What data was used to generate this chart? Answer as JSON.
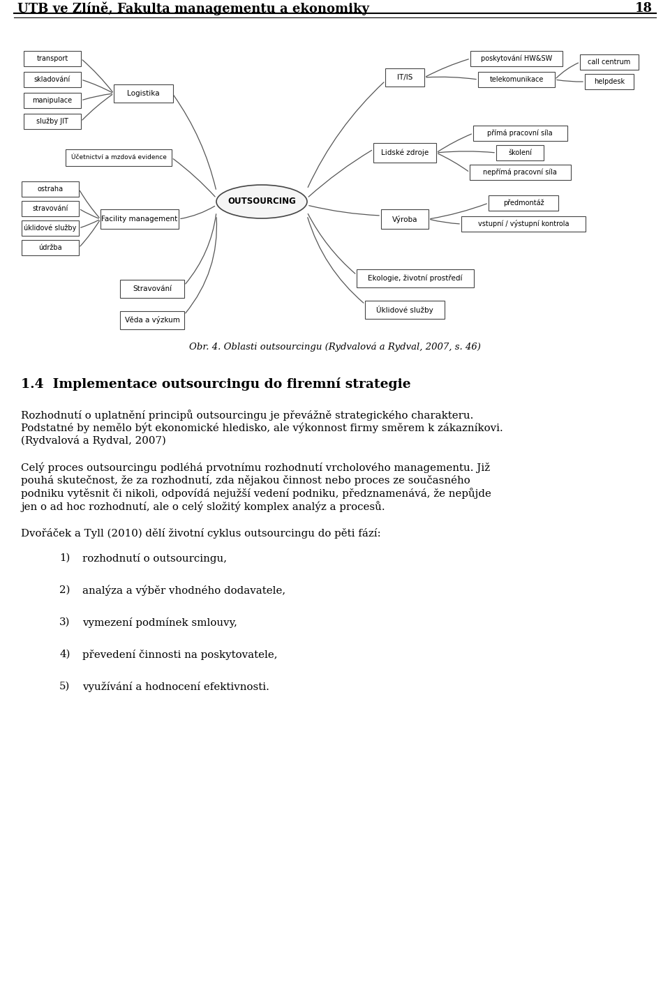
{
  "header_text": "UTB ve Zlíně, Fakulta managementu a ekonomiky",
  "header_number": "18",
  "fig_caption": "Obr. 4. Oblasti outsourcingu (Rydvalová a Rydval, 2007, s. 46)",
  "section_title": "1.4  Implementace outsourcingu do firemní strategie",
  "para1_line1": "Rozhodnutí o uplatnění principů outsourcingu je převážně strategického charakteru.",
  "para1_line2": "Podstatné by nemělo být ekonomické hledisko, ale výkonnost firmy směrem k zákazníkovi.",
  "para1_line3": "(Rydvalová a Rydval, 2007)",
  "para2_line1": "Celý proces outsourcingu podléhá prvotnímu rozhodnutí vrcholového managementu. Již",
  "para2_line2": "pouhá skutečnost, že za rozhodnutí, zda nějakou činnost nebo proces ze současného",
  "para2_line3": "podniku vytěsnit či nikoli, odpovídá nejužší vedení podniku, předznamenává, že nepůjde",
  "para2_line4": "jen o ad hoc rozhodnutí, ale o celý složitý komplex analýz a procesů.",
  "para3": "Dvořáček a Tyll (2010) dělí životní cyklus outsourcingu do pěti fází:",
  "list_items": [
    "rozhodnutí o outsourcingu,",
    "analýza a výběr vhodného dodavatele,",
    "vymezení podmínek smlouvy,",
    "převedení činnosti na poskytovatele,",
    "využívání a hodnocení efektivnosti."
  ],
  "bg_color": "#ffffff",
  "text_color": "#000000"
}
